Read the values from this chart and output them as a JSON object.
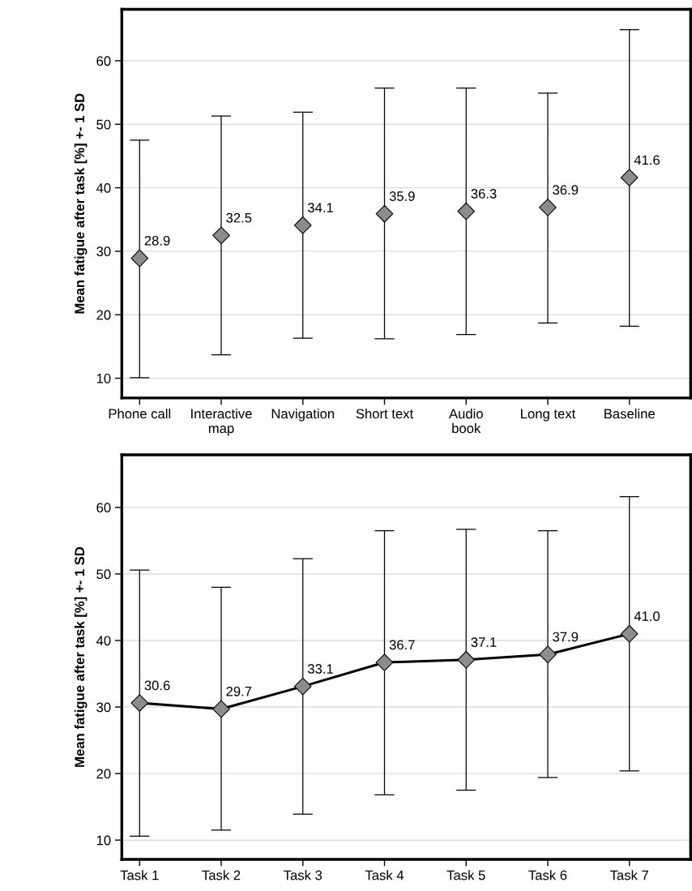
{
  "chart_data": [
    {
      "type": "scatter",
      "ylabel": "Mean fatigue after task [%] +- 1 SD",
      "categories": [
        "Phone call",
        "Interactive\nmap",
        "Navigation",
        "Short text",
        "Audio\nbook",
        "Long text",
        "Baseline"
      ],
      "series": [
        {
          "color": "#8c8c8c",
          "values": [
            28.9,
            32.5,
            34.1,
            35.9,
            36.3,
            36.9,
            41.6
          ],
          "value_labels": [
            "28.9",
            "32.5",
            "34.1",
            "35.9",
            "36.3",
            "36.9",
            "41.6"
          ],
          "errors": [
            [
              10.1,
              47.5
            ],
            [
              13.7,
              51.3
            ],
            [
              16.3,
              51.9
            ],
            [
              16.2,
              55.7
            ],
            [
              16.9,
              55.7
            ],
            [
              18.7,
              54.9
            ],
            [
              18.2,
              64.9
            ]
          ]
        }
      ],
      "marker": "diamond",
      "ylim": [
        6.9,
        68.1
      ],
      "yticks": [
        10,
        20,
        30,
        40,
        50,
        60
      ],
      "grid": "y"
    },
    {
      "type": "line",
      "ylabel": "Mean fatigue after task [%] +- 1 SD",
      "categories": [
        "Task 1",
        "Task 2",
        "Task 3",
        "Task 4",
        "Task 5",
        "Task 6",
        "Task 7"
      ],
      "series": [
        {
          "color": "#8c8c8c",
          "values": [
            30.6,
            29.7,
            33.1,
            36.7,
            37.1,
            37.9,
            41.0
          ],
          "value_labels": [
            "30.6",
            "29.7",
            "33.1",
            "36.7",
            "37.1",
            "37.9",
            "41.0"
          ],
          "errors": [
            [
              10.6,
              50.6
            ],
            [
              11.5,
              48.0
            ],
            [
              13.9,
              52.3
            ],
            [
              16.8,
              56.5
            ],
            [
              17.5,
              56.7
            ],
            [
              19.4,
              56.5
            ],
            [
              20.4,
              61.6
            ]
          ]
        }
      ],
      "marker": "diamond",
      "ylim": [
        7.1,
        67.9
      ],
      "yticks": [
        10,
        20,
        30,
        40,
        50,
        60
      ],
      "grid": "y"
    }
  ]
}
